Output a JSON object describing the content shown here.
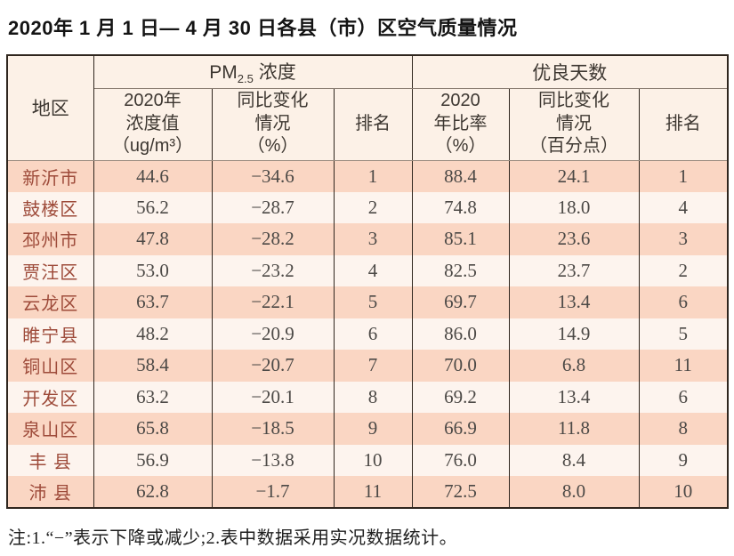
{
  "title": "2020年 1 月 1 日— 4 月 30 日各县（市）区空气质量情况",
  "note": "注:1.“−”表示下降或减少;2.表中数据采用实况数据统计。",
  "colors": {
    "row_odd_bg": "#fad6c3",
    "row_even_bg": "#fdf4ee",
    "header_bg": "#fcf1e7",
    "region_text": "#9e4b3a",
    "number_text": "#4c4946",
    "border": "#2f261e"
  },
  "table": {
    "region_header": "地区",
    "pm25_group": {
      "prefix": "PM",
      "sub": "2.5",
      "suffix": " 浓度"
    },
    "good_days_group": "优良天数",
    "sub_headers": [
      "2020年\n浓度值\n（ug/m³）",
      "同比变化\n情况\n（%）",
      "排名",
      "2020\n年比率\n（%）",
      "同比变化\n情况\n（百分点）",
      "排名"
    ],
    "rows": [
      [
        "新沂市",
        "44.6",
        "−34.6",
        "1",
        "88.4",
        "24.1",
        "1"
      ],
      [
        "鼓楼区",
        "56.2",
        "−28.7",
        "2",
        "74.8",
        "18.0",
        "4"
      ],
      [
        "邳州市",
        "47.8",
        "−28.2",
        "3",
        "85.1",
        "23.6",
        "3"
      ],
      [
        "贾汪区",
        "53.0",
        "−23.2",
        "4",
        "82.5",
        "23.7",
        "2"
      ],
      [
        "云龙区",
        "63.7",
        "−22.1",
        "5",
        "69.7",
        "13.4",
        "6"
      ],
      [
        "睢宁县",
        "48.2",
        "−20.9",
        "6",
        "86.0",
        "14.9",
        "5"
      ],
      [
        "铜山区",
        "58.4",
        "−20.7",
        "7",
        "70.0",
        "6.8",
        "11"
      ],
      [
        "开发区",
        "63.2",
        "−20.1",
        "8",
        "69.2",
        "13.4",
        "6"
      ],
      [
        "泉山区",
        "65.8",
        "−18.5",
        "9",
        "66.9",
        "11.8",
        "8"
      ],
      [
        "丰 县",
        "56.9",
        "−13.8",
        "10",
        "76.0",
        "8.4",
        "9"
      ],
      [
        "沛 县",
        "62.8",
        "−1.7",
        "11",
        "72.5",
        "8.0",
        "10"
      ]
    ]
  },
  "chart_data": {
    "type": "table",
    "title": "2020年1月1日—4月30日各县（市）区空气质量情况",
    "columns": [
      "地区",
      "PM2.5浓度 2020年浓度值（ug/m³）",
      "PM2.5浓度 同比变化情况（%）",
      "PM2.5浓度 排名",
      "优良天数 2020年比率（%）",
      "优良天数 同比变化情况（百分点）",
      "优良天数 排名"
    ],
    "categories": [
      "新沂市",
      "鼓楼区",
      "邳州市",
      "贾汪区",
      "云龙区",
      "睢宁县",
      "铜山区",
      "开发区",
      "泉山区",
      "丰县",
      "沛县"
    ],
    "series": [
      {
        "name": "PM2.5浓度2020年浓度值(ug/m3)",
        "values": [
          44.6,
          56.2,
          47.8,
          53.0,
          63.7,
          48.2,
          58.4,
          63.2,
          65.8,
          56.9,
          62.8
        ]
      },
      {
        "name": "PM2.5同比变化情况(%)",
        "values": [
          -34.6,
          -28.7,
          -28.2,
          -23.2,
          -22.1,
          -20.9,
          -20.7,
          -20.1,
          -18.5,
          -13.8,
          -1.7
        ]
      },
      {
        "name": "PM2.5排名",
        "values": [
          1,
          2,
          3,
          4,
          5,
          6,
          7,
          8,
          9,
          10,
          11
        ]
      },
      {
        "name": "优良天数2020年比率(%)",
        "values": [
          88.4,
          74.8,
          85.1,
          82.5,
          69.7,
          86.0,
          70.0,
          69.2,
          66.9,
          76.0,
          72.5
        ]
      },
      {
        "name": "优良天数同比变化情况(百分点)",
        "values": [
          24.1,
          18.0,
          23.6,
          23.7,
          13.4,
          14.9,
          6.8,
          13.4,
          11.8,
          8.4,
          8.0
        ]
      },
      {
        "name": "优良天数排名",
        "values": [
          1,
          4,
          3,
          2,
          6,
          5,
          11,
          6,
          8,
          9,
          10
        ]
      }
    ],
    "footnote": "注:1.“−”表示下降或减少;2.表中数据采用实况数据统计。"
  }
}
